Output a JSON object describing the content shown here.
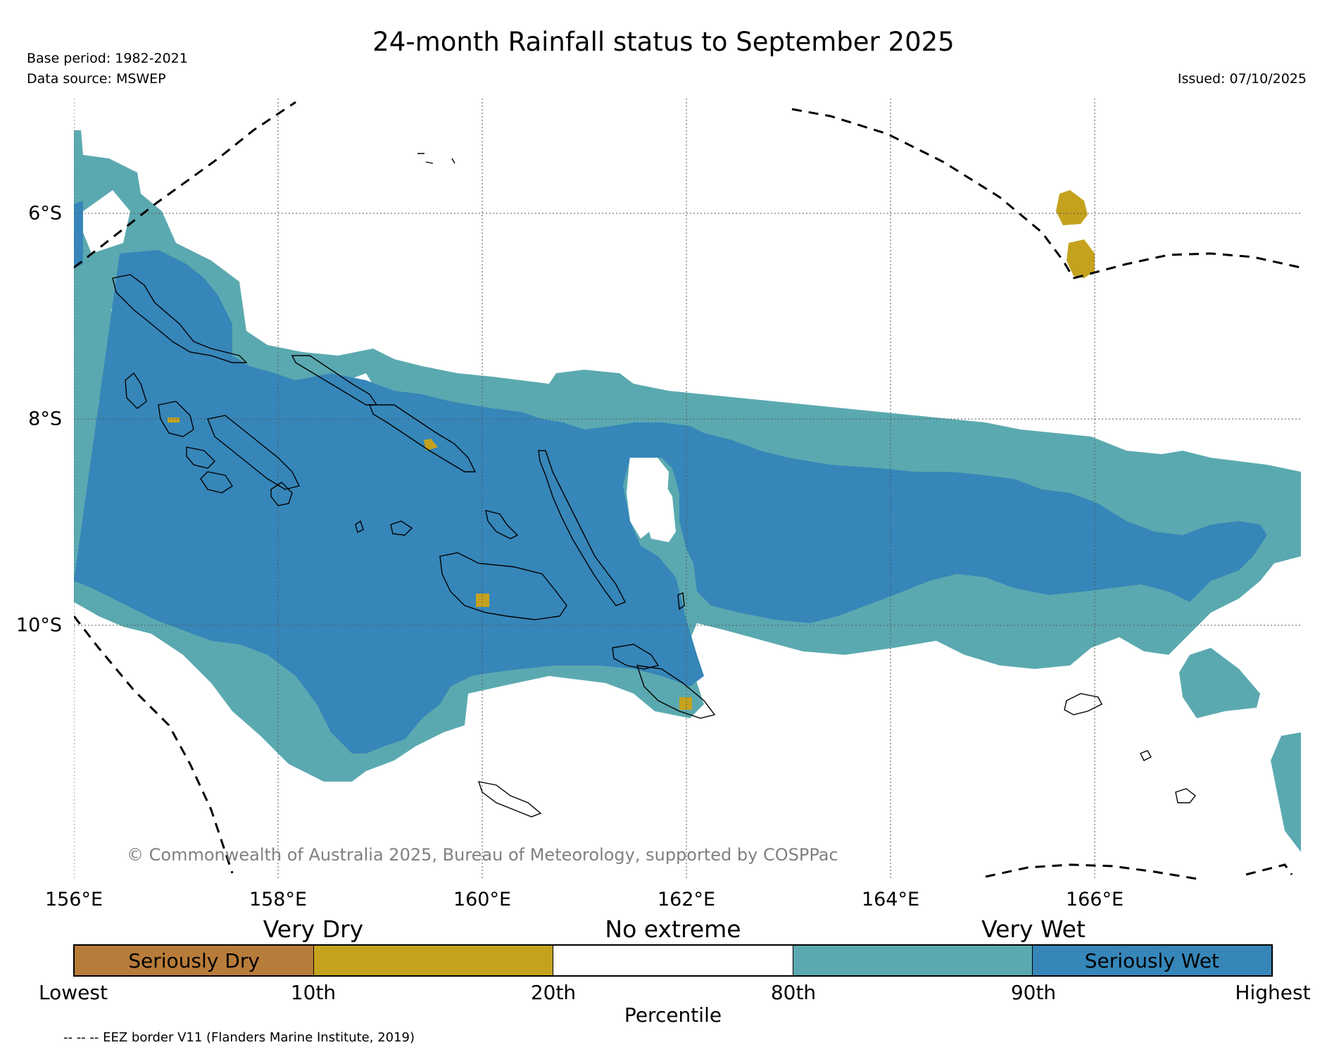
{
  "header": {
    "title": "24-month Rainfall status to September 2025",
    "base_period": "Base period: 1982-2021",
    "data_source": "Data source: MSWEP",
    "issued": "Issued: 07/10/2025"
  },
  "map": {
    "longitude_labels": [
      "156°E",
      "158°E",
      "160°E",
      "162°E",
      "164°E",
      "166°E"
    ],
    "latitude_labels": [
      "6°S",
      "8°S",
      "10°S"
    ],
    "copyright": "© Commonwealth of Australia 2025, Bureau of Meteorology, supported by COSPPac",
    "colors": {
      "seriously_dry": "#b87c3a",
      "very_dry": "#c4a21e",
      "no_extreme": "#ffffff",
      "very_wet": "#5ba9b0",
      "seriously_wet": "#3686b9"
    }
  },
  "legend": {
    "category_labels": [
      "Very Dry",
      "No extreme",
      "Very Wet"
    ],
    "segments": [
      {
        "label": "Seriously Dry",
        "color": "#b87c3a"
      },
      {
        "label": "",
        "color": "#c4a21e"
      },
      {
        "label": "",
        "color": "#ffffff"
      },
      {
        "label": "",
        "color": "#5ba9b0"
      },
      {
        "label": "Seriously Wet",
        "color": "#3686b9"
      }
    ],
    "ticks": [
      "Lowest",
      "10th",
      "20th",
      "80th",
      "90th",
      "Highest"
    ],
    "axis_label": "Percentile"
  },
  "footer": {
    "eez_note": "-- -- -- EEZ border V11 (Flanders Marine Institute, 2019)"
  }
}
